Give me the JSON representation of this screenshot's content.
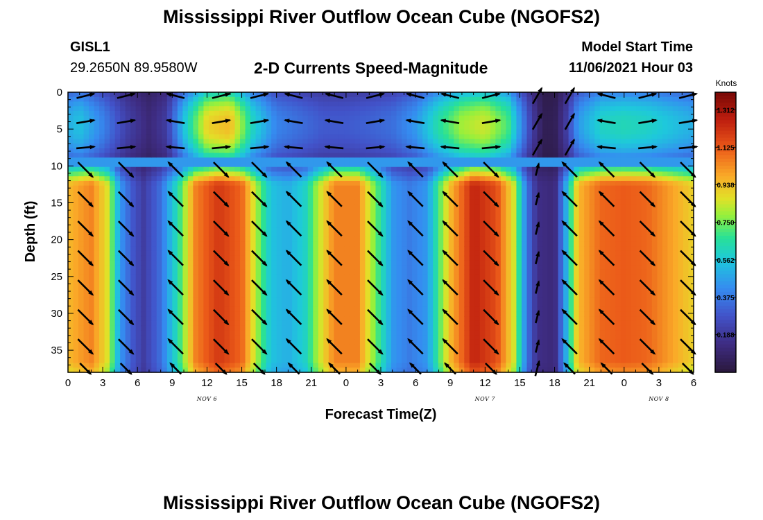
{
  "page": {
    "title": "Mississippi River Outflow Ocean Cube (NGOFS2)",
    "footer_title": "Mississippi River Outflow Ocean Cube (NGOFS2)",
    "station_id": "GISL1",
    "station_coords": "29.2650N  89.9580W",
    "subtitle": "2-D Currents Speed-Magnitude",
    "model_start_label": "Model Start Time",
    "model_start_value": "11/06/2021 Hour 03"
  },
  "chart_data": {
    "type": "heatmap",
    "title": "2-D Currents Speed-Magnitude",
    "xlabel": "Forecast Time(Z)",
    "ylabel": "Depth (ft)",
    "x_ticks": [
      "0",
      "3",
      "6",
      "9",
      "12",
      "15",
      "18",
      "21",
      "0",
      "3",
      "6",
      "9",
      "12",
      "15",
      "18",
      "21",
      "0",
      "3",
      "6"
    ],
    "x_range_hours": [
      0,
      54
    ],
    "date_labels": [
      {
        "text": "NOV 6",
        "hour": 12
      },
      {
        "text": "NOV 7",
        "hour": 36
      },
      {
        "text": "NOV 8",
        "hour": 51
      }
    ],
    "y_ticks": [
      0,
      5,
      10,
      15,
      20,
      25,
      30,
      35
    ],
    "ylim": [
      0,
      38
    ],
    "y_inverted": true,
    "colorbar": {
      "unit": "Knots",
      "range": [
        0,
        1.4
      ],
      "tick_labels": [
        "0.188",
        "0.375",
        "0.562",
        "0.750",
        "0.938",
        "1.125",
        "1.312"
      ],
      "tick_values": [
        0.188,
        0.375,
        0.562,
        0.75,
        0.938,
        1.125,
        1.312
      ]
    },
    "layers": {
      "upper_depth_range": [
        0,
        9
      ],
      "lower_depth_range": [
        10,
        38
      ]
    },
    "upper_speed_by_hour": [
      [
        0,
        0.5
      ],
      [
        1,
        0.55
      ],
      [
        3,
        0.4
      ],
      [
        5,
        0.22
      ],
      [
        7,
        0.12
      ],
      [
        8.5,
        0.2
      ],
      [
        10,
        0.55
      ],
      [
        12,
        0.9
      ],
      [
        14,
        0.95
      ],
      [
        16,
        0.6
      ],
      [
        18,
        0.4
      ],
      [
        20,
        0.35
      ],
      [
        22,
        0.3
      ],
      [
        24,
        0.3
      ],
      [
        26,
        0.32
      ],
      [
        28,
        0.35
      ],
      [
        30,
        0.45
      ],
      [
        32,
        0.65
      ],
      [
        34,
        0.8
      ],
      [
        36,
        0.85
      ],
      [
        38,
        0.7
      ],
      [
        39,
        0.45
      ],
      [
        40,
        0.22
      ],
      [
        41,
        0.05
      ],
      [
        42,
        0.05
      ],
      [
        43,
        0.2
      ],
      [
        44,
        0.45
      ],
      [
        46,
        0.6
      ],
      [
        48,
        0.62
      ],
      [
        50,
        0.6
      ],
      [
        52,
        0.55
      ],
      [
        54,
        0.5
      ]
    ],
    "lower_speed_by_hour": [
      [
        0,
        0.95
      ],
      [
        2,
        1.05
      ],
      [
        3.5,
        0.85
      ],
      [
        4.5,
        0.45
      ],
      [
        5.5,
        0.3
      ],
      [
        6.5,
        0.2
      ],
      [
        8,
        0.35
      ],
      [
        9.5,
        0.65
      ],
      [
        11,
        1.05
      ],
      [
        13,
        1.2
      ],
      [
        15,
        1.1
      ],
      [
        16.5,
        0.75
      ],
      [
        17.5,
        0.55
      ],
      [
        19,
        0.5
      ],
      [
        20.5,
        0.6
      ],
      [
        21.5,
        0.8
      ],
      [
        23,
        1.05
      ],
      [
        25,
        1.05
      ],
      [
        26.5,
        0.75
      ],
      [
        28,
        0.45
      ],
      [
        29.5,
        0.38
      ],
      [
        31,
        0.45
      ],
      [
        33,
        0.95
      ],
      [
        35,
        1.25
      ],
      [
        37,
        1.15
      ],
      [
        38.5,
        0.85
      ],
      [
        39.5,
        0.4
      ],
      [
        40.5,
        0.15
      ],
      [
        42,
        0.12
      ],
      [
        43,
        0.5
      ],
      [
        44,
        0.95
      ],
      [
        46,
        1.1
      ],
      [
        48,
        1.12
      ],
      [
        50,
        1.1
      ],
      [
        52,
        1.0
      ],
      [
        54,
        0.9
      ]
    ]
  }
}
